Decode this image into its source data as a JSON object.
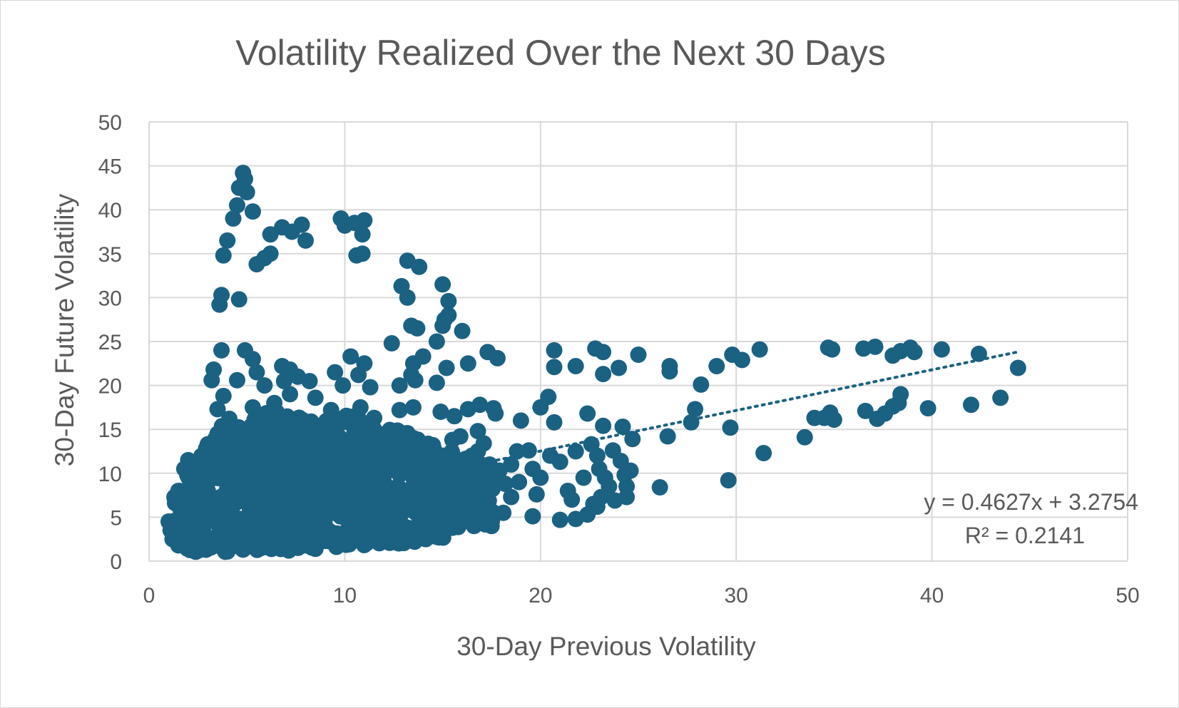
{
  "chart_data": {
    "type": "scatter",
    "title": "Volatility Realized Over the Next 30 Days",
    "xlabel": "30-Day Previous Volatility",
    "ylabel": "30-Day Future Volatility",
    "xlim": [
      0,
      50
    ],
    "ylim": [
      0,
      50
    ],
    "xticks": [
      "0",
      "10",
      "20",
      "30",
      "40",
      "50"
    ],
    "yticks": [
      "0",
      "5",
      "10",
      "15",
      "20",
      "25",
      "30",
      "35",
      "40",
      "45",
      "50"
    ],
    "grid": true,
    "legend": "none",
    "marker_color": "#1b6182",
    "trendline": {
      "type": "linear",
      "slope": 0.4627,
      "intercept": 3.2754,
      "x_range": [
        1,
        44.5
      ],
      "style": "dotted",
      "equation": "y = 0.4627x + 3.2754",
      "r2_label": "R² = 0.2141"
    },
    "points": [
      [
        4.8,
        44.2
      ],
      [
        4.9,
        43.5
      ],
      [
        4.6,
        42.5
      ],
      [
        5.0,
        42.0
      ],
      [
        4.5,
        40.5
      ],
      [
        5.3,
        39.8
      ],
      [
        4.3,
        39.0
      ],
      [
        4.0,
        36.5
      ],
      [
        3.8,
        34.8
      ],
      [
        3.7,
        30.3
      ],
      [
        3.6,
        29.2
      ],
      [
        4.6,
        29.8
      ],
      [
        6.2,
        37.2
      ],
      [
        6.8,
        38.0
      ],
      [
        7.3,
        37.5
      ],
      [
        7.8,
        38.3
      ],
      [
        8.0,
        36.5
      ],
      [
        6.2,
        35.0
      ],
      [
        5.9,
        34.5
      ],
      [
        5.5,
        33.8
      ],
      [
        9.8,
        39.0
      ],
      [
        10.0,
        38.2
      ],
      [
        10.5,
        38.5
      ],
      [
        11.0,
        38.8
      ],
      [
        10.9,
        37.2
      ],
      [
        10.6,
        34.8
      ],
      [
        10.9,
        35.0
      ],
      [
        13.2,
        34.2
      ],
      [
        13.8,
        33.5
      ],
      [
        12.9,
        31.3
      ],
      [
        13.2,
        30.0
      ],
      [
        13.4,
        26.8
      ],
      [
        13.7,
        26.5
      ],
      [
        15.0,
        31.5
      ],
      [
        15.3,
        29.6
      ],
      [
        15.1,
        27.5
      ],
      [
        15.3,
        28.0
      ],
      [
        15.0,
        26.8
      ],
      [
        16.0,
        26.2
      ],
      [
        12.4,
        24.8
      ],
      [
        14.7,
        25.0
      ],
      [
        3.7,
        24.0
      ],
      [
        4.9,
        24.0
      ],
      [
        5.3,
        23.0
      ],
      [
        6.8,
        22.2
      ],
      [
        7.2,
        21.8
      ],
      [
        9.5,
        21.5
      ],
      [
        10.3,
        23.3
      ],
      [
        11.0,
        22.5
      ],
      [
        13.5,
        22.5
      ],
      [
        14.0,
        23.3
      ],
      [
        15.2,
        22.0
      ],
      [
        16.3,
        22.5
      ],
      [
        17.3,
        23.8
      ],
      [
        17.8,
        23.1
      ],
      [
        3.3,
        21.8
      ],
      [
        3.2,
        20.6
      ],
      [
        4.5,
        20.6
      ],
      [
        5.5,
        21.5
      ],
      [
        5.9,
        20.0
      ],
      [
        6.9,
        20.5
      ],
      [
        7.6,
        21.0
      ],
      [
        8.2,
        20.5
      ],
      [
        9.9,
        20.0
      ],
      [
        10.7,
        21.2
      ],
      [
        11.3,
        19.8
      ],
      [
        12.8,
        20.0
      ],
      [
        13.6,
        20.6
      ],
      [
        14.7,
        20.3
      ],
      [
        13.4,
        21.2
      ],
      [
        3.8,
        18.8
      ],
      [
        3.5,
        17.3
      ],
      [
        4.1,
        16.2
      ],
      [
        5.3,
        17.5
      ],
      [
        6.4,
        18.0
      ],
      [
        7.2,
        19.0
      ],
      [
        8.5,
        18.6
      ],
      [
        9.3,
        17.2
      ],
      [
        10.8,
        17.5
      ],
      [
        11.5,
        16.3
      ],
      [
        12.8,
        17.2
      ],
      [
        13.5,
        17.5
      ],
      [
        14.9,
        17.0
      ],
      [
        15.6,
        16.5
      ],
      [
        16.3,
        17.3
      ],
      [
        16.9,
        17.8
      ],
      [
        17.6,
        17.4
      ],
      [
        17.7,
        16.8
      ],
      [
        19.0,
        16.0
      ],
      [
        20.0,
        17.5
      ],
      [
        20.4,
        18.7
      ],
      [
        20.7,
        15.8
      ],
      [
        22.4,
        16.8
      ],
      [
        23.2,
        15.4
      ],
      [
        24.2,
        15.3
      ],
      [
        22.8,
        24.2
      ],
      [
        23.2,
        23.8
      ],
      [
        24.0,
        22.0
      ],
      [
        25.0,
        23.5
      ],
      [
        20.7,
        24.0
      ],
      [
        20.7,
        22.1
      ],
      [
        21.8,
        22.2
      ],
      [
        23.2,
        21.3
      ],
      [
        26.6,
        22.2
      ],
      [
        26.6,
        21.6
      ],
      [
        28.2,
        20.1
      ],
      [
        29.0,
        22.2
      ],
      [
        29.8,
        23.5
      ],
      [
        30.3,
        22.9
      ],
      [
        31.2,
        24.1
      ],
      [
        27.9,
        17.3
      ],
      [
        27.7,
        15.8
      ],
      [
        26.5,
        14.2
      ],
      [
        29.7,
        15.2
      ],
      [
        31.4,
        12.3
      ],
      [
        29.6,
        9.2
      ],
      [
        26.1,
        8.4
      ],
      [
        24.7,
        13.9
      ],
      [
        33.5,
        14.1
      ],
      [
        34.0,
        16.3
      ],
      [
        34.5,
        16.3
      ],
      [
        34.8,
        16.9
      ],
      [
        35.0,
        16.1
      ],
      [
        36.6,
        17.1
      ],
      [
        37.2,
        16.2
      ],
      [
        37.6,
        16.8
      ],
      [
        38.0,
        17.6
      ],
      [
        38.3,
        18.0
      ],
      [
        38.4,
        19.0
      ],
      [
        39.8,
        17.4
      ],
      [
        42.0,
        17.8
      ],
      [
        43.5,
        18.6
      ],
      [
        34.7,
        24.3
      ],
      [
        34.9,
        24.1
      ],
      [
        36.5,
        24.2
      ],
      [
        37.1,
        24.4
      ],
      [
        38.0,
        23.4
      ],
      [
        38.4,
        23.9
      ],
      [
        38.9,
        24.3
      ],
      [
        39.1,
        23.8
      ],
      [
        40.5,
        24.1
      ],
      [
        42.4,
        23.6
      ],
      [
        44.4,
        22.0
      ],
      [
        18.5,
        7.3
      ],
      [
        18.8,
        12.5
      ],
      [
        19.6,
        10.5
      ],
      [
        20.0,
        9.5
      ],
      [
        19.8,
        7.6
      ],
      [
        20.5,
        12.0
      ],
      [
        21.0,
        11.3
      ],
      [
        21.4,
        8.0
      ],
      [
        21.6,
        7.0
      ],
      [
        21.8,
        12.5
      ],
      [
        22.2,
        9.5
      ],
      [
        22.6,
        13.3
      ],
      [
        22.9,
        12.0
      ],
      [
        23.0,
        10.5
      ],
      [
        23.3,
        9.5
      ],
      [
        23.5,
        8.5
      ],
      [
        23.7,
        12.6
      ],
      [
        24.1,
        11.4
      ],
      [
        24.3,
        9.8
      ],
      [
        24.4,
        8.5
      ],
      [
        24.6,
        10.3
      ],
      [
        22.7,
        6.5
      ],
      [
        23.1,
        7.3
      ],
      [
        23.8,
        6.9
      ],
      [
        24.4,
        7.3
      ],
      [
        21.0,
        4.7
      ],
      [
        21.8,
        4.8
      ],
      [
        22.4,
        5.3
      ],
      [
        22.9,
        6.2
      ],
      [
        18.1,
        5.5
      ],
      [
        19.6,
        5.1
      ],
      [
        17.5,
        4.0
      ],
      [
        16.6,
        4.0
      ],
      [
        17.1,
        6.3
      ],
      [
        16.3,
        9.0
      ],
      [
        17.4,
        11.0
      ],
      [
        16.8,
        12.5
      ],
      [
        15.9,
        14.2
      ],
      [
        16.8,
        14.8
      ],
      [
        17.1,
        13.4
      ],
      [
        15.5,
        13.8
      ],
      [
        14.5,
        13.2
      ],
      [
        13.5,
        14.0
      ],
      [
        12.5,
        14.5
      ],
      [
        11.5,
        15.0
      ],
      [
        10.5,
        14.7
      ],
      [
        9.5,
        15.1
      ],
      [
        8.5,
        14.3
      ],
      [
        7.5,
        14.8
      ],
      [
        6.5,
        15.2
      ],
      [
        5.5,
        14.5
      ],
      [
        4.5,
        14.2
      ],
      [
        3.5,
        14.5
      ],
      [
        3.0,
        13.3
      ],
      [
        2.5,
        11.2
      ],
      [
        2.0,
        11.5
      ],
      [
        1.8,
        10.5
      ],
      [
        1.5,
        8.0
      ],
      [
        1.3,
        7.3
      ],
      [
        1.0,
        4.5
      ],
      [
        1.1,
        3.5
      ],
      [
        1.2,
        2.5
      ],
      [
        1.5,
        1.8
      ],
      [
        2.0,
        1.5
      ],
      [
        2.5,
        1.2
      ],
      [
        3.0,
        1.5
      ],
      [
        4.0,
        1.1
      ],
      [
        5.0,
        1.8
      ],
      [
        6.0,
        1.6
      ],
      [
        7.0,
        1.5
      ],
      [
        8.0,
        1.8
      ],
      [
        8.5,
        1.4
      ],
      [
        9.0,
        2.3
      ],
      [
        10.0,
        2.4
      ],
      [
        11.0,
        2.2
      ],
      [
        12.0,
        2.4
      ],
      [
        13.0,
        2.5
      ],
      [
        14.0,
        2.6
      ],
      [
        14.8,
        2.7
      ],
      [
        15.5,
        3.8
      ],
      [
        16.0,
        4.5
      ],
      [
        16.8,
        5.3
      ],
      [
        17.2,
        4.5
      ],
      [
        18.2,
        8.8
      ],
      [
        18.9,
        9.0
      ],
      [
        19.4,
        12.6
      ],
      [
        18.5,
        11.0
      ],
      [
        17.9,
        10.3
      ],
      [
        17.5,
        9.2
      ],
      [
        17.0,
        8.0
      ],
      [
        16.5,
        6.8
      ],
      [
        3.5,
        6.0
      ],
      [
        4.0,
        7.5
      ],
      [
        4.5,
        9.0
      ],
      [
        5.0,
        10.5
      ],
      [
        5.5,
        12.0
      ],
      [
        6.0,
        8.0
      ],
      [
        6.5,
        6.5
      ],
      [
        7.0,
        10.0
      ],
      [
        7.5,
        12.5
      ],
      [
        8.0,
        9.5
      ],
      [
        8.5,
        7.0
      ],
      [
        9.0,
        11.0
      ],
      [
        9.5,
        13.0
      ],
      [
        10.0,
        8.5
      ],
      [
        10.5,
        6.0
      ],
      [
        11.0,
        10.5
      ],
      [
        11.5,
        12.5
      ],
      [
        12.0,
        9.0
      ],
      [
        12.5,
        7.0
      ],
      [
        13.0,
        11.5
      ],
      [
        13.5,
        9.5
      ],
      [
        14.0,
        7.5
      ],
      [
        14.5,
        10.0
      ],
      [
        15.0,
        12.0
      ],
      [
        15.5,
        8.5
      ],
      [
        16.0,
        10.5
      ],
      [
        16.5,
        12.0
      ],
      [
        2.5,
        4.0
      ],
      [
        3.0,
        8.0
      ],
      [
        4.0,
        3.5
      ],
      [
        5.0,
        5.0
      ],
      [
        6.0,
        4.0
      ],
      [
        7.0,
        4.5
      ],
      [
        8.0,
        5.5
      ],
      [
        9.0,
        4.0
      ],
      [
        10.0,
        5.0
      ],
      [
        11.0,
        4.5
      ],
      [
        12.0,
        5.5
      ],
      [
        13.0,
        4.0
      ],
      [
        14.0,
        5.0
      ],
      [
        15.0,
        6.0
      ],
      [
        2.0,
        6.5
      ],
      [
        3.0,
        10.5
      ],
      [
        2.5,
        9.0
      ],
      [
        3.5,
        11.5
      ],
      [
        4.5,
        12.5
      ],
      [
        1.8,
        3.0
      ],
      [
        2.2,
        8.5
      ]
    ],
    "dense_region": {
      "description_points_per_column": 10,
      "columns": [
        [
          1.5,
          1.5,
          8.0
        ],
        [
          2.0,
          1.2,
          11.0
        ],
        [
          2.5,
          1.0,
          12.0
        ],
        [
          3.0,
          1.2,
          13.0
        ],
        [
          3.5,
          1.0,
          14.5
        ],
        [
          4.0,
          1.0,
          15.5
        ],
        [
          4.5,
          1.0,
          15.5
        ],
        [
          5.0,
          1.2,
          16.0
        ],
        [
          5.5,
          1.2,
          16.5
        ],
        [
          6.0,
          1.2,
          17.0
        ],
        [
          6.5,
          1.2,
          17.5
        ],
        [
          7.0,
          1.2,
          17.5
        ],
        [
          7.5,
          1.2,
          17.0
        ],
        [
          8.0,
          1.2,
          16.5
        ],
        [
          8.5,
          1.5,
          16.0
        ],
        [
          9.0,
          1.5,
          16.5
        ],
        [
          9.5,
          1.5,
          17.0
        ],
        [
          10.0,
          1.8,
          17.0
        ],
        [
          10.5,
          1.8,
          16.5
        ],
        [
          11.0,
          1.8,
          16.0
        ],
        [
          11.5,
          2.0,
          15.5
        ],
        [
          12.0,
          2.0,
          15.5
        ],
        [
          12.5,
          2.0,
          15.0
        ],
        [
          13.0,
          2.0,
          15.0
        ],
        [
          13.5,
          2.0,
          14.5
        ],
        [
          14.0,
          2.2,
          14.0
        ],
        [
          14.5,
          2.2,
          13.5
        ],
        [
          15.0,
          2.5,
          13.0
        ],
        [
          15.5,
          3.0,
          12.5
        ],
        [
          16.0,
          3.5,
          12.0
        ],
        [
          16.5,
          3.8,
          11.5
        ],
        [
          17.0,
          4.0,
          11.0
        ],
        [
          17.5,
          4.5,
          10.5
        ]
      ]
    }
  }
}
